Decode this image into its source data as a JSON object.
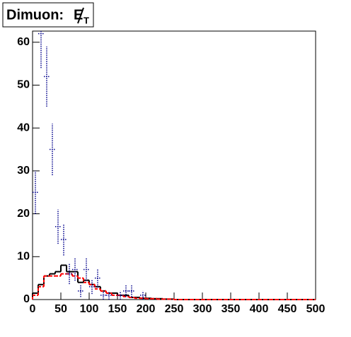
{
  "chart_data": {
    "type": "histogram",
    "title": "Dimuon:",
    "title_symbol": "E",
    "title_subscript": "T",
    "bins": [
      0,
      10,
      20,
      30,
      40,
      50,
      60,
      70,
      80,
      90,
      100,
      110,
      120,
      130,
      140,
      150,
      160,
      170,
      180,
      190,
      200,
      210,
      220,
      230,
      240,
      250,
      260,
      270,
      280,
      290,
      300,
      310,
      320,
      330,
      340,
      350,
      360,
      370,
      380,
      390,
      400,
      410,
      420,
      430,
      440,
      450,
      460,
      470,
      480,
      490,
      500
    ],
    "series": [
      {
        "color": "#000000",
        "style": "solid",
        "values": [
          1.5,
          3.5,
          5.5,
          6,
          6.5,
          8,
          6.5,
          6.5,
          4,
          4.5,
          3.5,
          3,
          2,
          1.5,
          1.5,
          1,
          1,
          0.5,
          0.5,
          0.3,
          0.3,
          0.2,
          0.2,
          0.1,
          0.1,
          0,
          0,
          0,
          0,
          0,
          0,
          0,
          0,
          0,
          0,
          0,
          0,
          0,
          0,
          0,
          0,
          0,
          0,
          0,
          0,
          0,
          0,
          0,
          0,
          0
        ]
      },
      {
        "color": "#ff0000",
        "style": "dashed",
        "values": [
          1,
          3,
          5.5,
          5.5,
          5.5,
          6,
          6,
          5.5,
          5,
          4,
          3.5,
          2.5,
          2,
          1.5,
          1,
          1,
          0.7,
          0.5,
          0.3,
          0.3,
          0.2,
          0.2,
          0.1,
          0.1,
          0.1,
          0,
          0,
          0,
          0,
          0,
          0,
          0,
          0,
          0,
          0,
          0,
          0,
          0,
          0,
          0,
          0,
          0,
          0,
          0,
          0,
          0,
          0,
          0,
          0,
          0
        ]
      },
      {
        "color": "#00008b",
        "style": "points",
        "values": [
          25,
          62,
          52,
          35,
          17,
          14,
          6,
          7,
          2,
          7,
          3,
          5,
          1,
          1,
          null,
          1,
          2,
          2,
          null,
          1,
          null,
          null,
          null,
          null,
          null,
          null,
          null,
          null,
          null,
          null,
          null,
          null,
          null,
          null,
          null,
          null,
          null,
          null,
          null,
          null,
          null,
          null,
          null,
          null,
          null,
          null,
          null,
          null,
          null,
          null
        ],
        "errors": [
          5,
          8,
          7,
          6,
          4,
          3.7,
          2.4,
          2.6,
          1.4,
          2.6,
          1.7,
          2.2,
          1,
          1,
          null,
          1,
          1.4,
          1.4,
          null,
          1,
          null,
          null,
          null,
          null,
          null,
          null,
          null,
          null,
          null,
          null,
          null,
          null,
          null,
          null,
          null,
          null,
          null,
          null,
          null,
          null,
          null,
          null,
          null,
          null,
          null,
          null,
          null,
          null,
          null,
          null
        ]
      }
    ],
    "xlim": [
      0,
      500
    ],
    "xticks": [
      0,
      50,
      100,
      150,
      200,
      250,
      300,
      350,
      400,
      450,
      500
    ],
    "ylim": [
      0,
      62.6
    ],
    "yticks": [
      0,
      10,
      20,
      30,
      40,
      50,
      60
    ]
  }
}
